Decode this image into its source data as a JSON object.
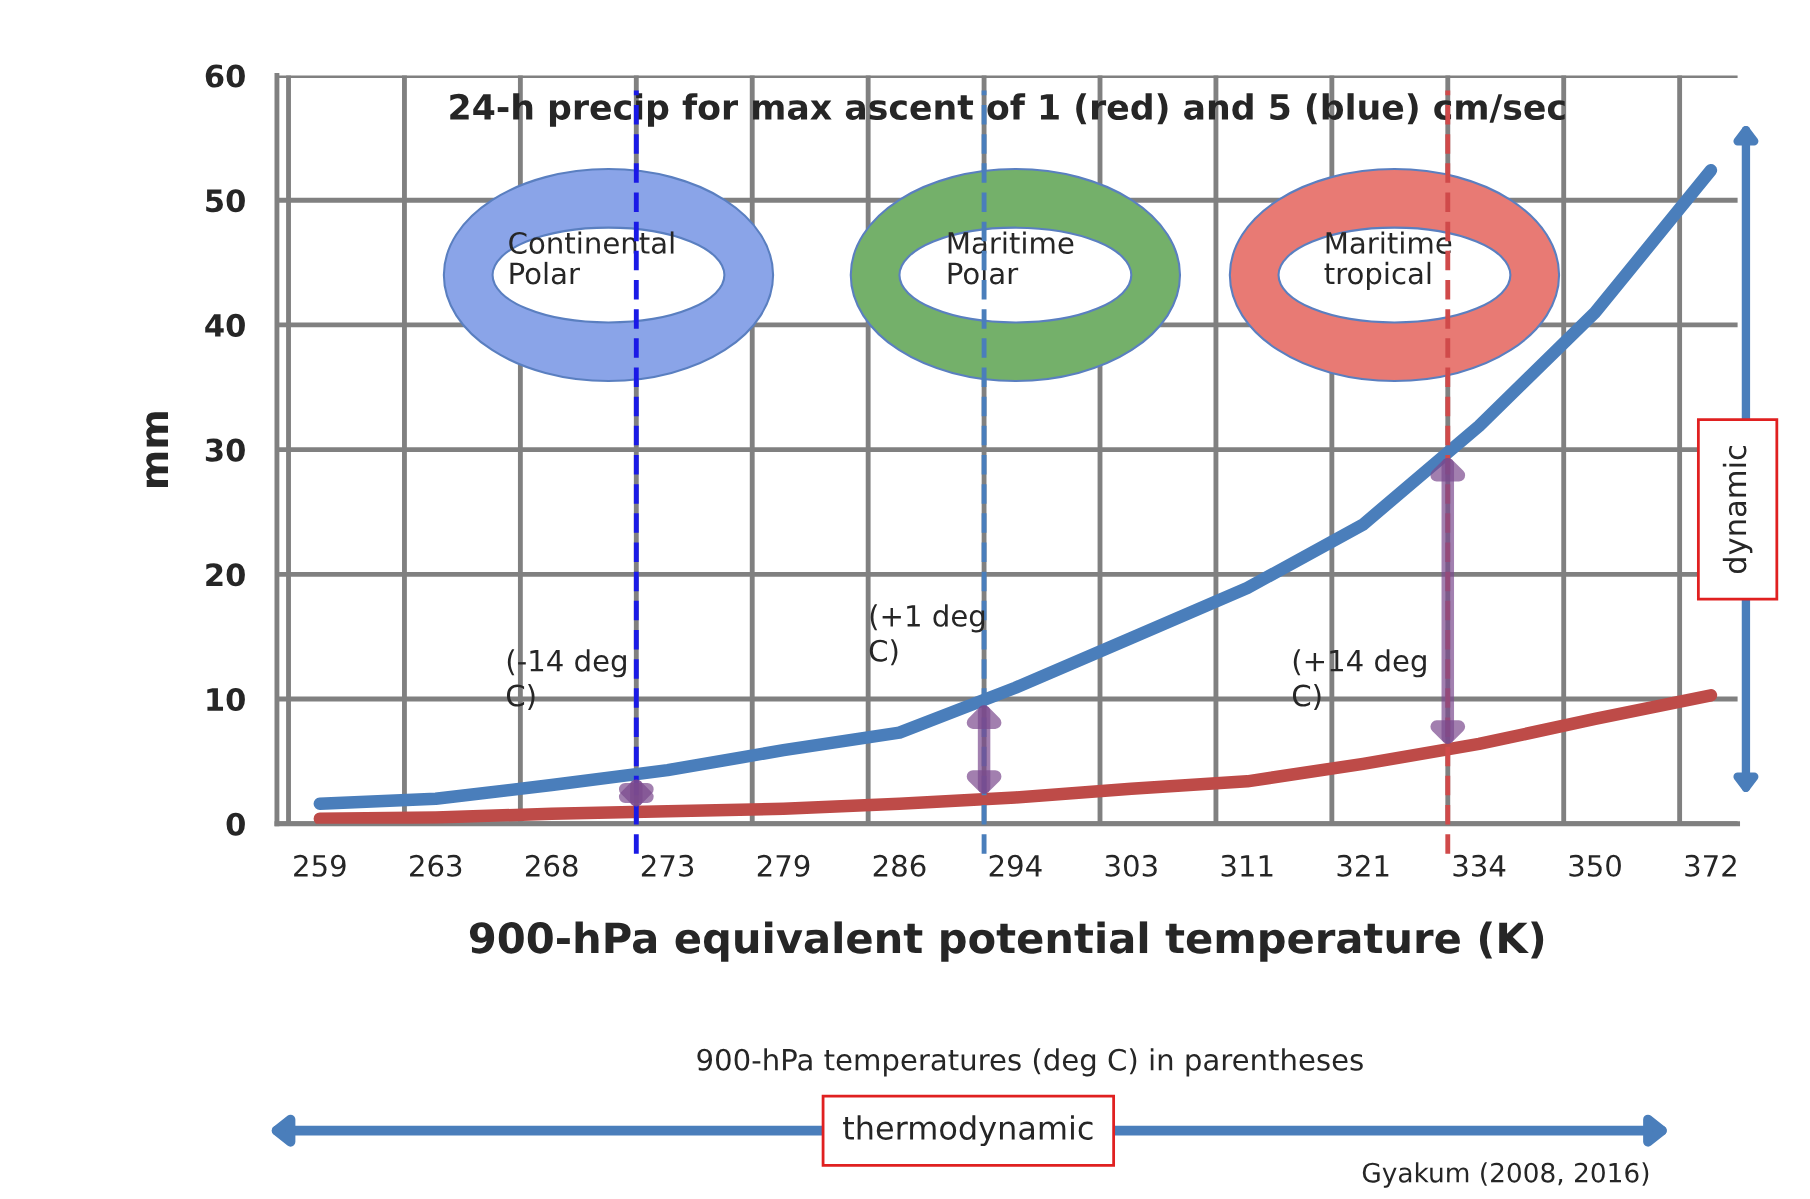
{
  "chart_data": {
    "type": "line",
    "title": "24-h precip for max ascent of 1 (red) and 5 (blue) cm/sec",
    "xlabel": "900-hPa equivalent potential temperature (K)",
    "ylabel": "mm",
    "categories": [
      "259",
      "263",
      "268",
      "273",
      "279",
      "286",
      "294",
      "303",
      "311",
      "321",
      "334",
      "350",
      "372"
    ],
    "ref_lines": [
      {
        "axis": "x",
        "value": "273",
        "color": "#1a1ae6",
        "line_style": "dashed"
      },
      {
        "axis": "x",
        "value": "294",
        "color": "#4a7ebb",
        "line_style": "dashed"
      },
      {
        "axis": "x",
        "value": "334",
        "color": "#d04a4a",
        "line_style": "dashed"
      }
    ],
    "series": [
      {
        "color": "#4a7ebb",
        "values": [
          1.6,
          2.0,
          3.1,
          4.3,
          5.9,
          7.3,
          10.9,
          14.9,
          18.9,
          24,
          31.9,
          41,
          52.4
        ]
      },
      {
        "color": "#be4b48",
        "values": [
          0.4,
          0.5,
          0.8,
          1.0,
          1.2,
          1.6,
          2.1,
          2.8,
          3.4,
          4.8,
          6.4,
          8.4,
          10.3
        ]
      }
    ],
    "ylim": [
      0,
      60
    ],
    "yticks": [
      0,
      10,
      20,
      30,
      40,
      50,
      60
    ],
    "grid": true,
    "line_style": "solid",
    "annotations": [
      "Continental Polar",
      "Maritime Polar",
      "Maritime tropical",
      "(-14 deg C)",
      "(+1 deg C)",
      "(+14 deg C)",
      "900-hPa temperatures (deg C) in parentheses",
      "dynamic",
      "thermodynamic",
      "Gyakum (2008, 2016)"
    ]
  }
}
